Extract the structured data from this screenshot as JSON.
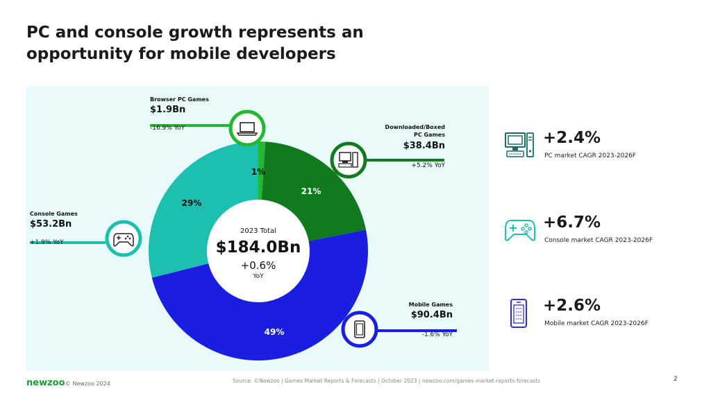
{
  "title": "PC and console growth represents an opportunity for mobile developers",
  "chart_data": {
    "type": "pie",
    "center": {
      "label": "2023 Total",
      "value": "$184.0Bn",
      "change": "+0.6%",
      "change_label": "YoY"
    },
    "segments": [
      {
        "key": "browser",
        "name": "Browser PC Games",
        "value": 1.9,
        "value_label": "$1.9Bn",
        "share": 1,
        "share_label": "1%",
        "yoy": "-16.9% YoY",
        "color": "#22b832",
        "icon": "laptop-icon"
      },
      {
        "key": "downloaded",
        "name": "Downloaded/Boxed PC Games",
        "value": 38.4,
        "value_label": "$38.4Bn",
        "share": 21,
        "share_label": "21%",
        "yoy": "+5.2% YoY",
        "color": "#117a1e",
        "icon": "desktop-computer-icon"
      },
      {
        "key": "mobile",
        "name": "Mobile Games",
        "value": 90.4,
        "value_label": "$90.4Bn",
        "share": 49,
        "share_label": "49%",
        "yoy": "-1.6% YoY",
        "color": "#1a1ee0",
        "icon": "mobile-phone-icon"
      },
      {
        "key": "console",
        "name": "Console Games",
        "value": 53.2,
        "value_label": "$53.2Bn",
        "share": 29,
        "share_label": "29%",
        "yoy": "+1.9% YoY",
        "color": "#1dbfb0",
        "icon": "gamepad-icon"
      }
    ]
  },
  "kpis": [
    {
      "value": "+2.4%",
      "label": "PC market CAGR 2023-2026F",
      "icon": "desktop-computer-icon"
    },
    {
      "value": "+6.7%",
      "label": "Console market CAGR 2023-2026F",
      "icon": "gamepad-icon"
    },
    {
      "value": "+2.6%",
      "label": "Mobile market CAGR 2023-2026F",
      "icon": "mobile-phone-icon"
    }
  ],
  "footer": {
    "logo": "newzoo",
    "copyright": "© Newzoo 2024",
    "source": "Source: ©Newzoo | Games Market Reports & Forecasts | October 2023 | newzoo.com/games-market-reports-forecasts",
    "page": "2"
  },
  "colors": {
    "accent_green": "#1b9e33",
    "icon_teal": "#1a6a6a",
    "panel_bg": "#e8fbfa"
  }
}
